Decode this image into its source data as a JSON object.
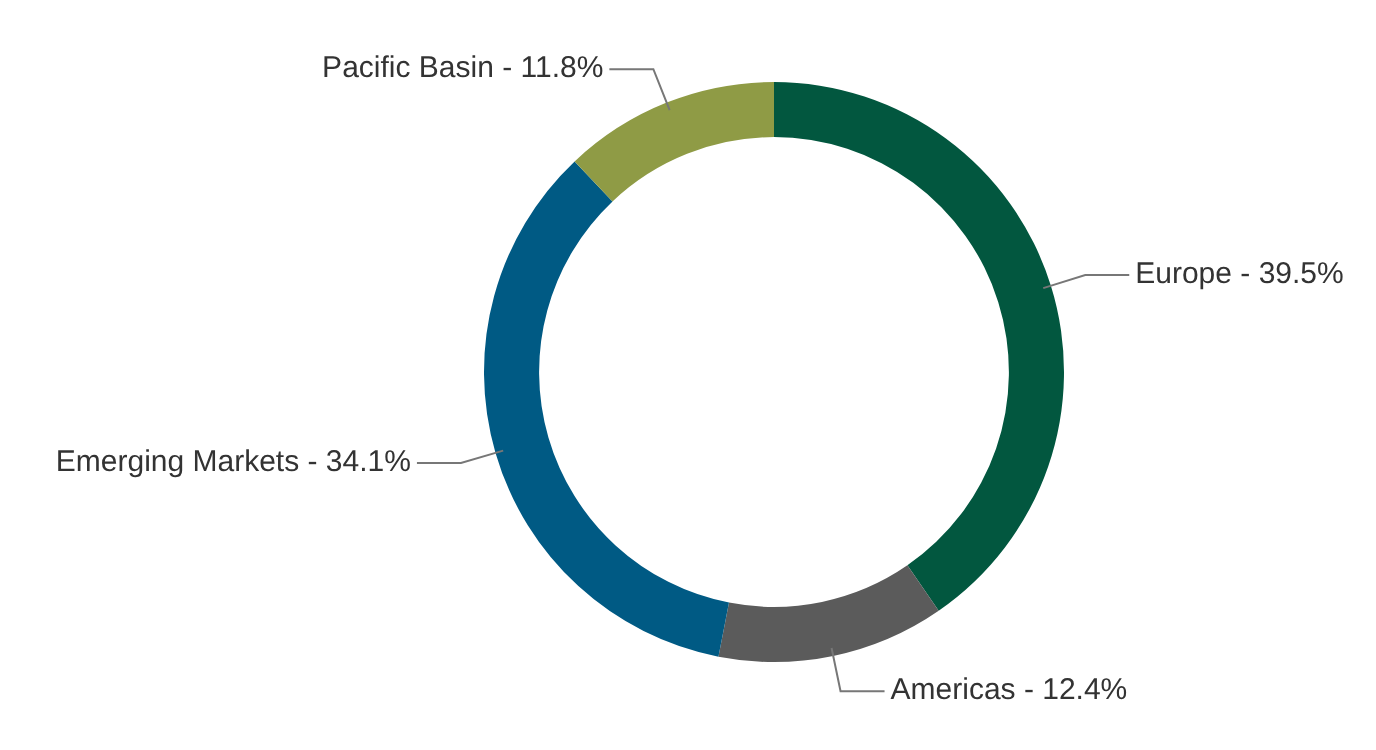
{
  "chart_data": {
    "type": "donut",
    "categories": [
      "Europe",
      "Americas",
      "Emerging Markets",
      "Pacific Basin"
    ],
    "values": [
      39.5,
      12.4,
      34.1,
      11.8
    ],
    "colors": [
      "#02573f",
      "#5b5b5b",
      "#005a84",
      "#8f9b45"
    ],
    "value_labels": [
      "39.5%",
      "12.4%",
      "34.1%",
      "11.8%"
    ],
    "legend": false
  }
}
